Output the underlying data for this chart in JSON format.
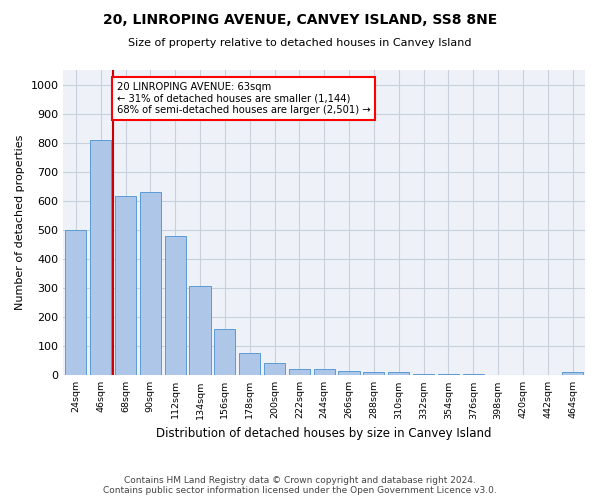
{
  "title1": "20, LINROPING AVENUE, CANVEY ISLAND, SS8 8NE",
  "title2": "Size of property relative to detached houses in Canvey Island",
  "xlabel": "Distribution of detached houses by size in Canvey Island",
  "ylabel": "Number of detached properties",
  "footer1": "Contains HM Land Registry data © Crown copyright and database right 2024.",
  "footer2": "Contains public sector information licensed under the Open Government Licence v3.0.",
  "categories": [
    "24sqm",
    "46sqm",
    "68sqm",
    "90sqm",
    "112sqm",
    "134sqm",
    "156sqm",
    "178sqm",
    "200sqm",
    "222sqm",
    "244sqm",
    "266sqm",
    "288sqm",
    "310sqm",
    "332sqm",
    "354sqm",
    "376sqm",
    "398sqm",
    "420sqm",
    "442sqm",
    "464sqm"
  ],
  "values": [
    500,
    810,
    615,
    630,
    480,
    308,
    160,
    78,
    43,
    22,
    22,
    15,
    12,
    10,
    6,
    4,
    3,
    2,
    2,
    2,
    10
  ],
  "bar_color": "#aec6e8",
  "bar_edge_color": "#5b9bd5",
  "property_line_x": 1.5,
  "property_label": "20 LINROPING AVENUE: 63sqm",
  "annotation_line1": "← 31% of detached houses are smaller (1,144)",
  "annotation_line2": "68% of semi-detached houses are larger (2,501) →",
  "ylim": [
    0,
    1050
  ],
  "yticks": [
    0,
    100,
    200,
    300,
    400,
    500,
    600,
    700,
    800,
    900,
    1000
  ],
  "grid_color": "#c8d0dc",
  "line_color": "#cc0000",
  "background_color": "#eef1f8"
}
